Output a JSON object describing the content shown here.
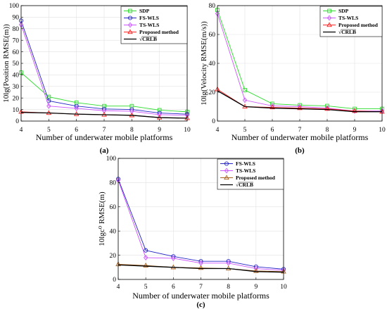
{
  "chart_data": [
    {
      "panel_label": "(a)",
      "type": "line",
      "xlabel": "Number of underwater mobile platforms",
      "ylabel": "10lg(Position RMSE(m))",
      "x": [
        4,
        5,
        6,
        7,
        8,
        9,
        10
      ],
      "xlim": [
        4,
        10
      ],
      "ylim": [
        0,
        100
      ],
      "xticks": [
        4,
        5,
        6,
        7,
        8,
        9,
        10
      ],
      "yticks": [
        0,
        10,
        20,
        30,
        40,
        50,
        60,
        70,
        80,
        90,
        100
      ],
      "grid": true,
      "legend_position": "top-right",
      "series": [
        {
          "name": "SDP",
          "color": "#2bdc2b",
          "marker": "square",
          "values": [
            42,
            21,
            16,
            13,
            13,
            9.5,
            8
          ]
        },
        {
          "name": "FS-WLS",
          "color": "#2424c8",
          "marker": "circle",
          "values": [
            87,
            17.5,
            13,
            10.5,
            10,
            7,
            6
          ]
        },
        {
          "name": "TS-WLS",
          "color": "#cc55ff",
          "marker": "diamond",
          "values": [
            83.5,
            13,
            11,
            9,
            8.5,
            5.5,
            5
          ]
        },
        {
          "name": "Proposed method",
          "color": "#ff2020",
          "marker": "triangle",
          "values": [
            8,
            7,
            6,
            5.5,
            5,
            3,
            2.5
          ]
        },
        {
          "name": "√CRLB",
          "color": "#000000",
          "marker": "none",
          "values": [
            7.5,
            7,
            6,
            5.5,
            5,
            3,
            2.5
          ]
        }
      ]
    },
    {
      "panel_label": "(b)",
      "type": "line",
      "xlabel": "Number of underwater mobile platforms",
      "ylabel": "10lg(Velocity RMSE(m/s))",
      "x": [
        4,
        5,
        6,
        7,
        8,
        9,
        10
      ],
      "xlim": [
        4,
        10
      ],
      "ylim": [
        0,
        80
      ],
      "xticks": [
        4,
        5,
        6,
        7,
        8,
        9,
        10
      ],
      "yticks": [
        0,
        20,
        40,
        60,
        80
      ],
      "grid": true,
      "legend_position": "top-right",
      "series": [
        {
          "name": "SDP",
          "color": "#2bdc2b",
          "marker": "square",
          "values": [
            77,
            21.5,
            12,
            11,
            10.5,
            8.5,
            8.5
          ]
        },
        {
          "name": "TS-WLS",
          "color": "#cc55ff",
          "marker": "diamond",
          "values": [
            74.5,
            14.5,
            10.5,
            10,
            9,
            7,
            7
          ]
        },
        {
          "name": "Proposed method",
          "color": "#ff2020",
          "marker": "triangle",
          "values": [
            22,
            10,
            9.5,
            9,
            8.5,
            7,
            6.5
          ]
        },
        {
          "name": "√CRLB",
          "color": "#000000",
          "marker": "none",
          "values": [
            21,
            10,
            9,
            8.5,
            8,
            6.5,
            6.5
          ]
        }
      ]
    },
    {
      "panel_label": "(c)",
      "type": "line",
      "xlabel": "Number of underwater mobile platforms",
      "ylabel": "10lgc⁰ RMSE(m)",
      "x": [
        4,
        5,
        6,
        7,
        8,
        9,
        10
      ],
      "xlim": [
        4,
        10
      ],
      "ylim": [
        0,
        100
      ],
      "xticks": [
        4,
        5,
        6,
        7,
        8,
        9,
        10
      ],
      "yticks": [
        0,
        20,
        40,
        60,
        80,
        100
      ],
      "grid": true,
      "legend_position": "top-right",
      "series": [
        {
          "name": "FS-WLS",
          "color": "#2424c8",
          "marker": "circle",
          "values": [
            83,
            24,
            19,
            15,
            15,
            10.5,
            8.5
          ]
        },
        {
          "name": "TS-WLS",
          "color": "#cc55ff",
          "marker": "diamond",
          "values": [
            82,
            18,
            17.5,
            13.5,
            13.5,
            9,
            7.5
          ]
        },
        {
          "name": "Proposed method",
          "color": "#a8601a",
          "marker": "triangle",
          "values": [
            12.5,
            11.5,
            10,
            9.5,
            9,
            7,
            6.5
          ]
        },
        {
          "name": "√CRLB",
          "color": "#000000",
          "marker": "none",
          "values": [
            12,
            11,
            10,
            9,
            9,
            6.5,
            6
          ]
        }
      ]
    }
  ]
}
